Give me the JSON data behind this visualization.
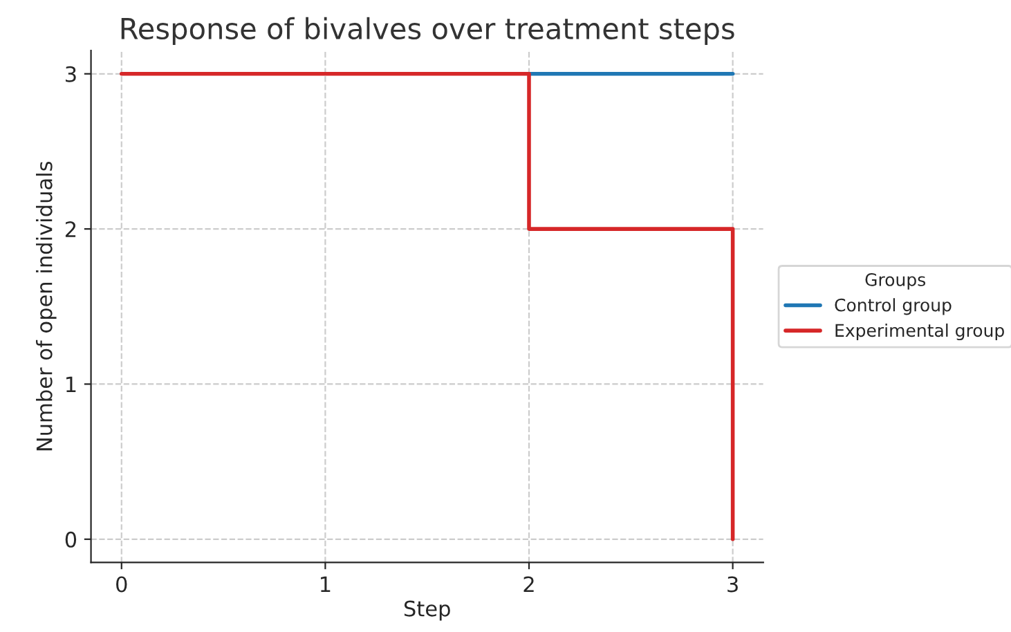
{
  "chart_data": {
    "type": "step",
    "title": "Response of bivalves over treatment steps",
    "xlabel": "Step",
    "ylabel": "Number of open individuals",
    "legend_title": "Groups",
    "legend": "right",
    "grid": true,
    "line_style": "solid",
    "marker": "none",
    "x": [
      0,
      1,
      2,
      3
    ],
    "series": [
      {
        "name": "Control group",
        "color": "#1f77b4",
        "values": [
          null,
          null,
          3,
          3
        ]
      },
      {
        "name": "Experimental group",
        "color": "#d62728",
        "values": [
          3,
          3,
          2,
          0
        ]
      }
    ],
    "xlim": [
      -0.15,
      3.15
    ],
    "xticks": [
      0,
      1,
      2,
      3
    ],
    "ylim": [
      -0.15,
      3.15
    ],
    "yticks": [
      0,
      1,
      2,
      3
    ]
  }
}
